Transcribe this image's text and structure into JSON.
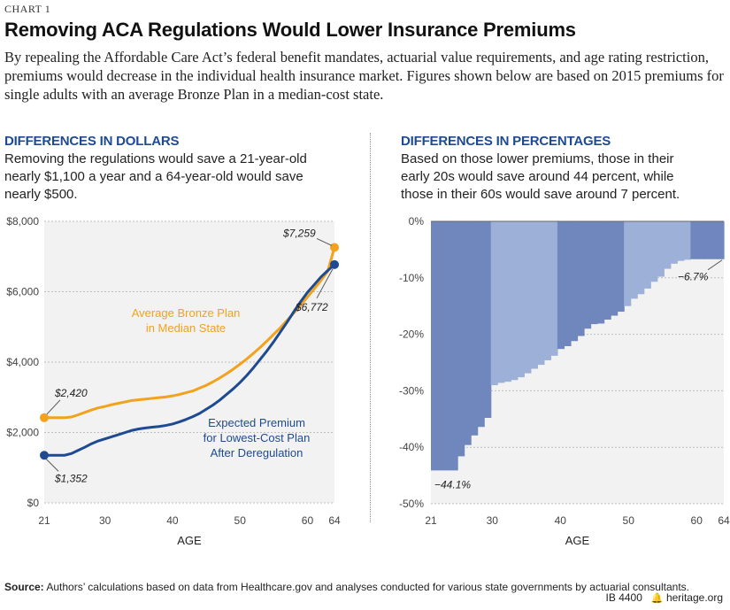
{
  "header": {
    "chart_number": "CHART 1",
    "title": "Removing ACA Regulations Would Lower Insurance Premiums",
    "description": "By repealing the Affordable Care Act’s federal benefit mandates, actuarial value requirements, and age rating restriction, premiums would decrease in the individual health insurance market. Figures shown below are based on 2015 premiums for single adults with an average Bronze Plan in a median-cost state."
  },
  "left_panel": {
    "heading": "DIFFERENCES IN DOLLARS",
    "text": "Removing the regulations would save a 21-year-old nearly $1,100 a year and a 64-year-old would save nearly $500."
  },
  "right_panel": {
    "heading": "DIFFERENCES IN PERCENTAGES",
    "text": "Based on those lower premiums, those in their early 20s would save around 44 percent, while those in their 60s would save around 7 percent."
  },
  "footer": {
    "source_label": "Source:",
    "source_text": "Authors’ calculations based on data from Healthcare.gov and analyses conducted for various state governments by actuarial consultants.",
    "ib_number": "IB 4400",
    "site": "heritage.org"
  },
  "colors": {
    "bronze": "#f2a21c",
    "deregulated": "#1d4a91",
    "area_dark": "#6f87bd",
    "area_light": "#9db0d8",
    "plot_bg": "#f2f2f2"
  },
  "chart_data": [
    {
      "type": "line",
      "xlabel": "AGE",
      "ylabel": "",
      "xlim": [
        21,
        64
      ],
      "ylim": [
        0,
        8000
      ],
      "x_ticks": [
        21,
        30,
        40,
        50,
        60,
        64
      ],
      "y_ticks": [
        0,
        2000,
        4000,
        6000,
        8000
      ],
      "y_tick_labels": [
        "$0",
        "$2,000",
        "$4,000",
        "$6,000",
        "$8,000"
      ],
      "grid": true,
      "series": [
        {
          "name": "Average Bronze Plan in Median State",
          "label_lines": [
            "Average Bronze Plan",
            "in Median State"
          ],
          "x": [
            21,
            22,
            23,
            24,
            25,
            26,
            27,
            28,
            29,
            30,
            31,
            32,
            33,
            34,
            35,
            36,
            37,
            38,
            39,
            40,
            41,
            42,
            43,
            44,
            45,
            46,
            47,
            48,
            49,
            50,
            51,
            52,
            53,
            54,
            55,
            56,
            57,
            58,
            59,
            60,
            61,
            62,
            63,
            64
          ],
          "values": [
            2420,
            2420,
            2420,
            2420,
            2440,
            2500,
            2570,
            2640,
            2700,
            2740,
            2790,
            2830,
            2870,
            2910,
            2930,
            2950,
            2970,
            2990,
            3010,
            3040,
            3080,
            3130,
            3180,
            3260,
            3340,
            3440,
            3550,
            3670,
            3800,
            3940,
            4090,
            4250,
            4420,
            4600,
            4790,
            4980,
            5190,
            5400,
            5620,
            5850,
            6080,
            6320,
            6580,
            7259
          ],
          "start_label": "$2,420",
          "end_label": "$7,259"
        },
        {
          "name": "Expected Premium for Lowest-Cost Plan After Deregulation",
          "label_lines": [
            "Expected Premium",
            "for Lowest-Cost Plan",
            "After Deregulation"
          ],
          "x": [
            21,
            22,
            23,
            24,
            25,
            26,
            27,
            28,
            29,
            30,
            31,
            32,
            33,
            34,
            35,
            36,
            37,
            38,
            39,
            40,
            41,
            42,
            43,
            44,
            45,
            46,
            47,
            48,
            49,
            50,
            51,
            52,
            53,
            54,
            55,
            56,
            57,
            58,
            59,
            60,
            61,
            62,
            63,
            64
          ],
          "values": [
            1352,
            1352,
            1352,
            1352,
            1400,
            1490,
            1580,
            1680,
            1760,
            1820,
            1880,
            1940,
            2000,
            2060,
            2100,
            2130,
            2150,
            2170,
            2200,
            2240,
            2300,
            2370,
            2450,
            2540,
            2660,
            2780,
            2920,
            3080,
            3240,
            3420,
            3620,
            3840,
            4080,
            4320,
            4580,
            4860,
            5140,
            5440,
            5720,
            5980,
            6200,
            6420,
            6600,
            6772
          ],
          "start_label": "$1,352",
          "end_label": "$6,772"
        }
      ]
    },
    {
      "type": "area",
      "xlabel": "AGE",
      "ylabel": "",
      "xlim": [
        21,
        64
      ],
      "ylim": [
        -50,
        0
      ],
      "x_ticks": [
        21,
        30,
        40,
        50,
        60,
        64
      ],
      "y_ticks": [
        0,
        -10,
        -20,
        -30,
        -40,
        -50
      ],
      "y_tick_labels": [
        "0%",
        "-10%",
        "-20%",
        "-30%",
        "-40%",
        "-50%"
      ],
      "grid": true,
      "series": [
        {
          "name": "",
          "x": [
            21,
            22,
            23,
            24,
            25,
            26,
            27,
            28,
            29,
            30,
            31,
            32,
            33,
            34,
            35,
            36,
            37,
            38,
            39,
            40,
            41,
            42,
            43,
            44,
            45,
            46,
            47,
            48,
            49,
            50,
            51,
            52,
            53,
            54,
            55,
            56,
            57,
            58,
            59,
            60,
            61,
            62,
            63,
            64
          ],
          "values": [
            -44.1,
            -44.1,
            -44.1,
            -44.1,
            -41.6,
            -39.6,
            -37.9,
            -36.4,
            -34.8,
            -29.0,
            -28.6,
            -28.4,
            -28.1,
            -27.6,
            -26.9,
            -26.1,
            -25.4,
            -24.6,
            -23.8,
            -22.6,
            -22.1,
            -21.2,
            -20.3,
            -19.0,
            -18.2,
            -18.1,
            -17.4,
            -16.7,
            -16.0,
            -15.0,
            -13.7,
            -12.9,
            -11.9,
            -10.7,
            -9.8,
            -8.4,
            -7.5,
            -7.0,
            -6.8,
            -6.7,
            -6.7,
            -6.7,
            -6.7,
            -6.7
          ],
          "start_label": "−44.1%",
          "end_label": "−6.7%"
        }
      ]
    }
  ]
}
